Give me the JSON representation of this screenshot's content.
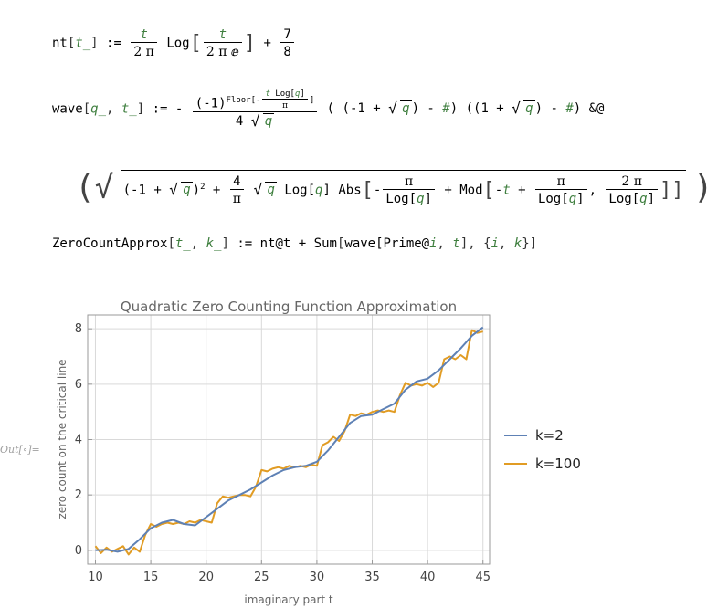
{
  "code": {
    "nt_name": "nt",
    "t_arg": "t_",
    "assign": ":=",
    "t": "t",
    "two_pi": "2 π",
    "log": "Log",
    "two_pi_e": "2 π ⅇ",
    "plus": "+",
    "seven": "7",
    "eight": "8",
    "wave_name": "wave",
    "q_arg": "q_",
    "neg_one": "(-1)",
    "floor": "Floor",
    "log_q": "Log[q]",
    "pi": "π",
    "four": "4",
    "q": "q",
    "minus_one": "-1",
    "one": "1",
    "slot": "#",
    "amp_at": "&@",
    "two": "2",
    "abs": "Abs",
    "mod": "Mod",
    "zca_name": "ZeroCountApprox",
    "k_arg": "k_",
    "nt_at_t": "nt@t",
    "sum": "Sum",
    "wave_call": "wave[Prime@",
    "i": "i",
    "k": "k",
    "out_label": "Out[∘]="
  },
  "chart_data": {
    "type": "line",
    "title": "Quadratic Zero Counting Function Approximation",
    "xlabel": "imaginary part t",
    "ylabel": "zero count on the critical line",
    "xlim": [
      9.3,
      45.6
    ],
    "ylim": [
      -0.5,
      8.5
    ],
    "xticks": [
      10,
      15,
      20,
      25,
      30,
      35,
      40,
      45
    ],
    "yticks": [
      0,
      2,
      4,
      6,
      8
    ],
    "grid": true,
    "legend_position": "right",
    "series": [
      {
        "name": "k=2",
        "color": "#5e81b5",
        "x": [
          10,
          11,
          12,
          13,
          14,
          15,
          16,
          17,
          18,
          19,
          20,
          21,
          22,
          23,
          24,
          25,
          26,
          27,
          28,
          29,
          30,
          31,
          32,
          33,
          34,
          35,
          36,
          37,
          38,
          39,
          40,
          41,
          42,
          43,
          44,
          45
        ],
        "y": [
          0.0,
          0.02,
          -0.05,
          0.05,
          0.4,
          0.8,
          1.0,
          1.1,
          0.95,
          0.9,
          1.2,
          1.5,
          1.8,
          2.0,
          2.2,
          2.45,
          2.7,
          2.9,
          3.0,
          3.05,
          3.2,
          3.6,
          4.1,
          4.6,
          4.85,
          4.9,
          5.1,
          5.3,
          5.8,
          6.1,
          6.2,
          6.5,
          6.9,
          7.3,
          7.75,
          8.05
        ]
      },
      {
        "name": "k=100",
        "color": "#e19c24",
        "x": [
          10,
          10.5,
          11,
          11.5,
          12,
          12.5,
          13,
          13.5,
          14,
          14.5,
          15,
          15.5,
          16,
          16.5,
          17,
          17.5,
          18,
          18.5,
          19,
          19.5,
          20,
          20.5,
          21,
          21.5,
          22,
          22.5,
          23,
          23.5,
          24,
          24.5,
          25,
          25.5,
          26,
          26.5,
          27,
          27.5,
          28,
          28.5,
          29,
          29.5,
          30,
          30.5,
          31,
          31.5,
          32,
          32.5,
          33,
          33.5,
          34,
          34.5,
          35,
          35.5,
          36,
          36.5,
          37,
          37.5,
          38,
          38.5,
          39,
          39.5,
          40,
          40.5,
          41,
          41.5,
          42,
          42.5,
          43,
          43.5,
          44,
          44.5,
          45
        ],
        "y": [
          0.15,
          -0.1,
          0.1,
          -0.05,
          0.05,
          0.15,
          -0.15,
          0.1,
          -0.05,
          0.55,
          0.95,
          0.85,
          0.95,
          1.0,
          0.95,
          1.0,
          0.95,
          1.05,
          1.0,
          1.1,
          1.05,
          1.0,
          1.7,
          1.95,
          1.9,
          1.95,
          2.0,
          2.0,
          1.95,
          2.3,
          2.9,
          2.85,
          2.95,
          3.0,
          2.95,
          3.05,
          3.0,
          3.05,
          3.0,
          3.1,
          3.05,
          3.8,
          3.9,
          4.1,
          3.95,
          4.3,
          4.9,
          4.85,
          4.95,
          4.9,
          5.0,
          5.05,
          5.0,
          5.05,
          5.0,
          5.6,
          6.05,
          5.95,
          6.0,
          5.95,
          6.05,
          5.9,
          6.05,
          6.9,
          7.0,
          6.9,
          7.05,
          6.9,
          7.95,
          7.85,
          7.9
        ]
      }
    ]
  }
}
